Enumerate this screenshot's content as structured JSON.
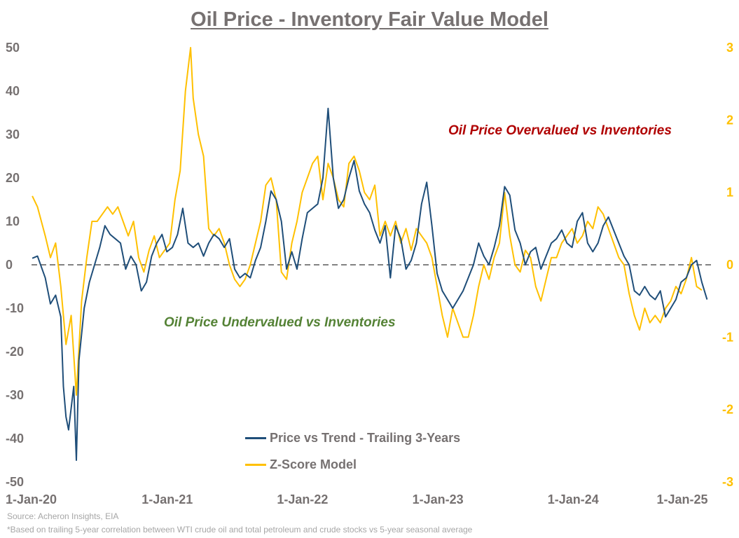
{
  "title": "Oil Price - Inventory Fair Value Model",
  "source": "Source: Acheron Insights, EIA",
  "footnote": "*Based on trailing 5-year correlation between WTI crude oil and total petroleum and crude stocks vs 5-year seasonal average",
  "annotations": {
    "overvalued": "Oil Price Overvalued vs Inventories",
    "undervalued": "Oil Price Undervalued vs Inventories"
  },
  "colors": {
    "price": "#1f4e79",
    "zscore": "#ffc000",
    "left_axis": "#767171",
    "right_axis": "#ffc000",
    "zero_line": "#595959",
    "overvalued": "#b00000",
    "undervalued": "#548235",
    "title": "#767171"
  },
  "chart_data": {
    "type": "line",
    "title": "Oil Price - Inventory Fair Value Model",
    "x_ticks": [
      "1-Jan-20",
      "1-Jan-21",
      "1-Jan-22",
      "1-Jan-23",
      "1-Jan-24",
      "1-Jan-25"
    ],
    "y_left": {
      "range": [
        -50,
        50
      ],
      "ticks": [
        "50",
        "40",
        "30",
        "20",
        "10",
        "0",
        "-10",
        "-20",
        "-30",
        "-40",
        "-50"
      ]
    },
    "y_right": {
      "range": [
        -3,
        3
      ],
      "ticks": [
        "3",
        "2",
        "1",
        "0",
        "-1",
        "-2",
        "-3"
      ]
    },
    "zero_line": "dashed",
    "grid": false,
    "legend_position": "bottom-center",
    "series": [
      {
        "name": "Price vs Trend - Trailing 3-Years",
        "axis": "left",
        "points": [
          [
            "2020-01-03",
            1.5
          ],
          [
            "2020-01-17",
            2
          ],
          [
            "2020-02-07",
            -3
          ],
          [
            "2020-02-21",
            -9
          ],
          [
            "2020-03-06",
            -7
          ],
          [
            "2020-03-20",
            -12
          ],
          [
            "2020-03-27",
            -28
          ],
          [
            "2020-04-03",
            -35
          ],
          [
            "2020-04-10",
            -38
          ],
          [
            "2020-04-24",
            -28
          ],
          [
            "2020-05-01",
            -45
          ],
          [
            "2020-05-08",
            -22
          ],
          [
            "2020-05-22",
            -10
          ],
          [
            "2020-06-05",
            -4
          ],
          [
            "2020-06-19",
            0
          ],
          [
            "2020-07-03",
            4
          ],
          [
            "2020-07-17",
            9
          ],
          [
            "2020-07-31",
            7
          ],
          [
            "2020-08-14",
            6
          ],
          [
            "2020-08-28",
            5
          ],
          [
            "2020-09-11",
            -1
          ],
          [
            "2020-09-25",
            2
          ],
          [
            "2020-10-09",
            0
          ],
          [
            "2020-10-23",
            -6
          ],
          [
            "2020-11-06",
            -4
          ],
          [
            "2020-11-20",
            2
          ],
          [
            "2020-12-04",
            5
          ],
          [
            "2020-12-18",
            7
          ],
          [
            "2020-12-31",
            3
          ],
          [
            "2021-01-15",
            4
          ],
          [
            "2021-01-29",
            7
          ],
          [
            "2021-02-12",
            13
          ],
          [
            "2021-02-26",
            5
          ],
          [
            "2021-03-12",
            4
          ],
          [
            "2021-03-26",
            5
          ],
          [
            "2021-04-09",
            2
          ],
          [
            "2021-04-23",
            5
          ],
          [
            "2021-05-07",
            7
          ],
          [
            "2021-05-21",
            6
          ],
          [
            "2021-06-04",
            4
          ],
          [
            "2021-06-18",
            6
          ],
          [
            "2021-07-02",
            -1
          ],
          [
            "2021-07-16",
            -3
          ],
          [
            "2021-07-30",
            -2
          ],
          [
            "2021-08-13",
            -3
          ],
          [
            "2021-08-27",
            1
          ],
          [
            "2021-09-10",
            4
          ],
          [
            "2021-09-24",
            10
          ],
          [
            "2021-10-08",
            17
          ],
          [
            "2021-10-22",
            15
          ],
          [
            "2021-11-05",
            10
          ],
          [
            "2021-11-19",
            -1
          ],
          [
            "2021-12-03",
            3
          ],
          [
            "2021-12-17",
            -1
          ],
          [
            "2021-12-31",
            6
          ],
          [
            "2022-01-14",
            12
          ],
          [
            "2022-01-28",
            13
          ],
          [
            "2022-02-11",
            14
          ],
          [
            "2022-02-25",
            20
          ],
          [
            "2022-03-11",
            36
          ],
          [
            "2022-03-25",
            20
          ],
          [
            "2022-04-08",
            13
          ],
          [
            "2022-04-22",
            15
          ],
          [
            "2022-05-06",
            20
          ],
          [
            "2022-05-20",
            24
          ],
          [
            "2022-06-03",
            17
          ],
          [
            "2022-06-17",
            14
          ],
          [
            "2022-07-01",
            12
          ],
          [
            "2022-07-15",
            8
          ],
          [
            "2022-07-29",
            5
          ],
          [
            "2022-08-12",
            9
          ],
          [
            "2022-08-26",
            -3
          ],
          [
            "2022-09-09",
            9
          ],
          [
            "2022-09-23",
            6
          ],
          [
            "2022-10-07",
            -1
          ],
          [
            "2022-10-21",
            1
          ],
          [
            "2022-11-04",
            5
          ],
          [
            "2022-11-18",
            14
          ],
          [
            "2022-12-02",
            19
          ],
          [
            "2022-12-16",
            9
          ],
          [
            "2022-12-30",
            -2
          ],
          [
            "2023-01-13",
            -6
          ],
          [
            "2023-01-27",
            -8
          ],
          [
            "2023-02-10",
            -10
          ],
          [
            "2023-02-24",
            -8
          ],
          [
            "2023-03-10",
            -6
          ],
          [
            "2023-03-24",
            -3
          ],
          [
            "2023-04-07",
            0
          ],
          [
            "2023-04-21",
            5
          ],
          [
            "2023-05-05",
            2
          ],
          [
            "2023-05-19",
            0
          ],
          [
            "2023-06-02",
            4
          ],
          [
            "2023-06-16",
            9
          ],
          [
            "2023-06-30",
            18
          ],
          [
            "2023-07-14",
            16
          ],
          [
            "2023-07-28",
            8
          ],
          [
            "2023-08-11",
            5
          ],
          [
            "2023-08-25",
            0
          ],
          [
            "2023-09-08",
            3
          ],
          [
            "2023-09-22",
            4
          ],
          [
            "2023-10-06",
            -1
          ],
          [
            "2023-10-20",
            2
          ],
          [
            "2023-11-03",
            5
          ],
          [
            "2023-11-17",
            6
          ],
          [
            "2023-12-01",
            8
          ],
          [
            "2023-12-15",
            5
          ],
          [
            "2023-12-29",
            4
          ],
          [
            "2024-01-12",
            10
          ],
          [
            "2024-01-26",
            12
          ],
          [
            "2024-02-09",
            5
          ],
          [
            "2024-02-23",
            3
          ],
          [
            "2024-03-08",
            5
          ],
          [
            "2024-03-22",
            9
          ],
          [
            "2024-04-05",
            11
          ],
          [
            "2024-04-19",
            8
          ],
          [
            "2024-05-03",
            5
          ],
          [
            "2024-05-17",
            2
          ],
          [
            "2024-05-31",
            0
          ],
          [
            "2024-06-14",
            -6
          ],
          [
            "2024-06-28",
            -7
          ],
          [
            "2024-07-12",
            -5
          ],
          [
            "2024-07-26",
            -7
          ],
          [
            "2024-08-09",
            -8
          ],
          [
            "2024-08-23",
            -6
          ],
          [
            "2024-09-06",
            -12
          ],
          [
            "2024-09-20",
            -10
          ],
          [
            "2024-10-04",
            -8
          ],
          [
            "2024-10-18",
            -4
          ],
          [
            "2024-11-01",
            -3
          ],
          [
            "2024-11-15",
            0
          ],
          [
            "2024-11-29",
            1
          ],
          [
            "2024-12-13",
            -4
          ],
          [
            "2024-12-27",
            -8
          ]
        ]
      },
      {
        "name": "Z-Score Model",
        "axis": "right",
        "points": [
          [
            "2020-01-03",
            0.95
          ],
          [
            "2020-01-17",
            0.8
          ],
          [
            "2020-02-07",
            0.4
          ],
          [
            "2020-02-21",
            0.1
          ],
          [
            "2020-03-06",
            0.3
          ],
          [
            "2020-03-20",
            -0.3
          ],
          [
            "2020-04-03",
            -1.1
          ],
          [
            "2020-04-17",
            -0.7
          ],
          [
            "2020-05-01",
            -1.8
          ],
          [
            "2020-05-15",
            -0.5
          ],
          [
            "2020-05-29",
            0.1
          ],
          [
            "2020-06-12",
            0.6
          ],
          [
            "2020-06-26",
            0.6
          ],
          [
            "2020-07-10",
            0.7
          ],
          [
            "2020-07-24",
            0.8
          ],
          [
            "2020-08-07",
            0.7
          ],
          [
            "2020-08-21",
            0.8
          ],
          [
            "2020-09-04",
            0.6
          ],
          [
            "2020-09-18",
            0.4
          ],
          [
            "2020-10-02",
            0.6
          ],
          [
            "2020-10-16",
            0.1
          ],
          [
            "2020-10-30",
            -0.1
          ],
          [
            "2020-11-13",
            0.2
          ],
          [
            "2020-11-27",
            0.4
          ],
          [
            "2020-12-11",
            0.1
          ],
          [
            "2020-12-25",
            0.2
          ],
          [
            "2021-01-08",
            0.3
          ],
          [
            "2021-01-22",
            0.9
          ],
          [
            "2021-02-05",
            1.3
          ],
          [
            "2021-02-19",
            2.4
          ],
          [
            "2021-03-05",
            3
          ],
          [
            "2021-03-12",
            2.3
          ],
          [
            "2021-03-26",
            1.8
          ],
          [
            "2021-04-09",
            1.5
          ],
          [
            "2021-04-23",
            0.5
          ],
          [
            "2021-05-07",
            0.4
          ],
          [
            "2021-05-21",
            0.5
          ],
          [
            "2021-06-04",
            0.3
          ],
          [
            "2021-06-18",
            0
          ],
          [
            "2021-07-02",
            -0.2
          ],
          [
            "2021-07-16",
            -0.3
          ],
          [
            "2021-07-30",
            -0.2
          ],
          [
            "2021-08-13",
            0
          ],
          [
            "2021-08-27",
            0.3
          ],
          [
            "2021-09-10",
            0.6
          ],
          [
            "2021-09-24",
            1.1
          ],
          [
            "2021-10-08",
            1.2
          ],
          [
            "2021-10-22",
            0.9
          ],
          [
            "2021-11-05",
            -0.1
          ],
          [
            "2021-11-19",
            -0.2
          ],
          [
            "2021-12-03",
            0.3
          ],
          [
            "2021-12-17",
            0.6
          ],
          [
            "2021-12-31",
            1
          ],
          [
            "2022-01-14",
            1.2
          ],
          [
            "2022-01-28",
            1.4
          ],
          [
            "2022-02-11",
            1.5
          ],
          [
            "2022-02-25",
            0.9
          ],
          [
            "2022-03-11",
            1.4
          ],
          [
            "2022-03-25",
            1.2
          ],
          [
            "2022-04-08",
            0.9
          ],
          [
            "2022-04-22",
            0.8
          ],
          [
            "2022-05-06",
            1.4
          ],
          [
            "2022-05-20",
            1.5
          ],
          [
            "2022-06-03",
            1.3
          ],
          [
            "2022-06-17",
            1.0
          ],
          [
            "2022-07-01",
            0.9
          ],
          [
            "2022-07-15",
            1.1
          ],
          [
            "2022-07-29",
            0.4
          ],
          [
            "2022-08-12",
            0.6
          ],
          [
            "2022-08-26",
            0.4
          ],
          [
            "2022-09-09",
            0.6
          ],
          [
            "2022-09-23",
            0.3
          ],
          [
            "2022-10-07",
            0.5
          ],
          [
            "2022-10-21",
            0.2
          ],
          [
            "2022-11-04",
            0.5
          ],
          [
            "2022-11-18",
            0.4
          ],
          [
            "2022-12-02",
            0.3
          ],
          [
            "2022-12-16",
            0.1
          ],
          [
            "2022-12-30",
            -0.3
          ],
          [
            "2023-01-13",
            -0.7
          ],
          [
            "2023-01-27",
            -1.0
          ],
          [
            "2023-02-10",
            -0.6
          ],
          [
            "2023-02-24",
            -0.8
          ],
          [
            "2023-03-10",
            -1.0
          ],
          [
            "2023-03-24",
            -1.0
          ],
          [
            "2023-04-07",
            -0.7
          ],
          [
            "2023-04-21",
            -0.3
          ],
          [
            "2023-05-05",
            0
          ],
          [
            "2023-05-19",
            -0.2
          ],
          [
            "2023-06-02",
            0.1
          ],
          [
            "2023-06-16",
            0.3
          ],
          [
            "2023-06-30",
            1
          ],
          [
            "2023-07-14",
            0.4
          ],
          [
            "2023-07-28",
            0
          ],
          [
            "2023-08-11",
            -0.1
          ],
          [
            "2023-08-25",
            0.2
          ],
          [
            "2023-09-08",
            0.1
          ],
          [
            "2023-09-22",
            -0.3
          ],
          [
            "2023-10-06",
            -0.5
          ],
          [
            "2023-10-20",
            -0.2
          ],
          [
            "2023-11-03",
            0.1
          ],
          [
            "2023-11-17",
            0.1
          ],
          [
            "2023-12-01",
            0.3
          ],
          [
            "2023-12-15",
            0.4
          ],
          [
            "2023-12-29",
            0.5
          ],
          [
            "2024-01-12",
            0.3
          ],
          [
            "2024-01-26",
            0.4
          ],
          [
            "2024-02-09",
            0.6
          ],
          [
            "2024-02-23",
            0.5
          ],
          [
            "2024-03-08",
            0.8
          ],
          [
            "2024-03-22",
            0.7
          ],
          [
            "2024-04-05",
            0.5
          ],
          [
            "2024-04-19",
            0.3
          ],
          [
            "2024-05-03",
            0.1
          ],
          [
            "2024-05-17",
            0
          ],
          [
            "2024-05-31",
            -0.4
          ],
          [
            "2024-06-14",
            -0.7
          ],
          [
            "2024-06-28",
            -0.9
          ],
          [
            "2024-07-12",
            -0.6
          ],
          [
            "2024-07-26",
            -0.8
          ],
          [
            "2024-08-09",
            -0.7
          ],
          [
            "2024-08-23",
            -0.8
          ],
          [
            "2024-09-06",
            -0.6
          ],
          [
            "2024-09-20",
            -0.5
          ],
          [
            "2024-10-04",
            -0.3
          ],
          [
            "2024-10-18",
            -0.4
          ],
          [
            "2024-11-01",
            -0.2
          ],
          [
            "2024-11-15",
            0.1
          ],
          [
            "2024-11-29",
            -0.3
          ],
          [
            "2024-12-13",
            -0.35
          ]
        ]
      }
    ]
  }
}
